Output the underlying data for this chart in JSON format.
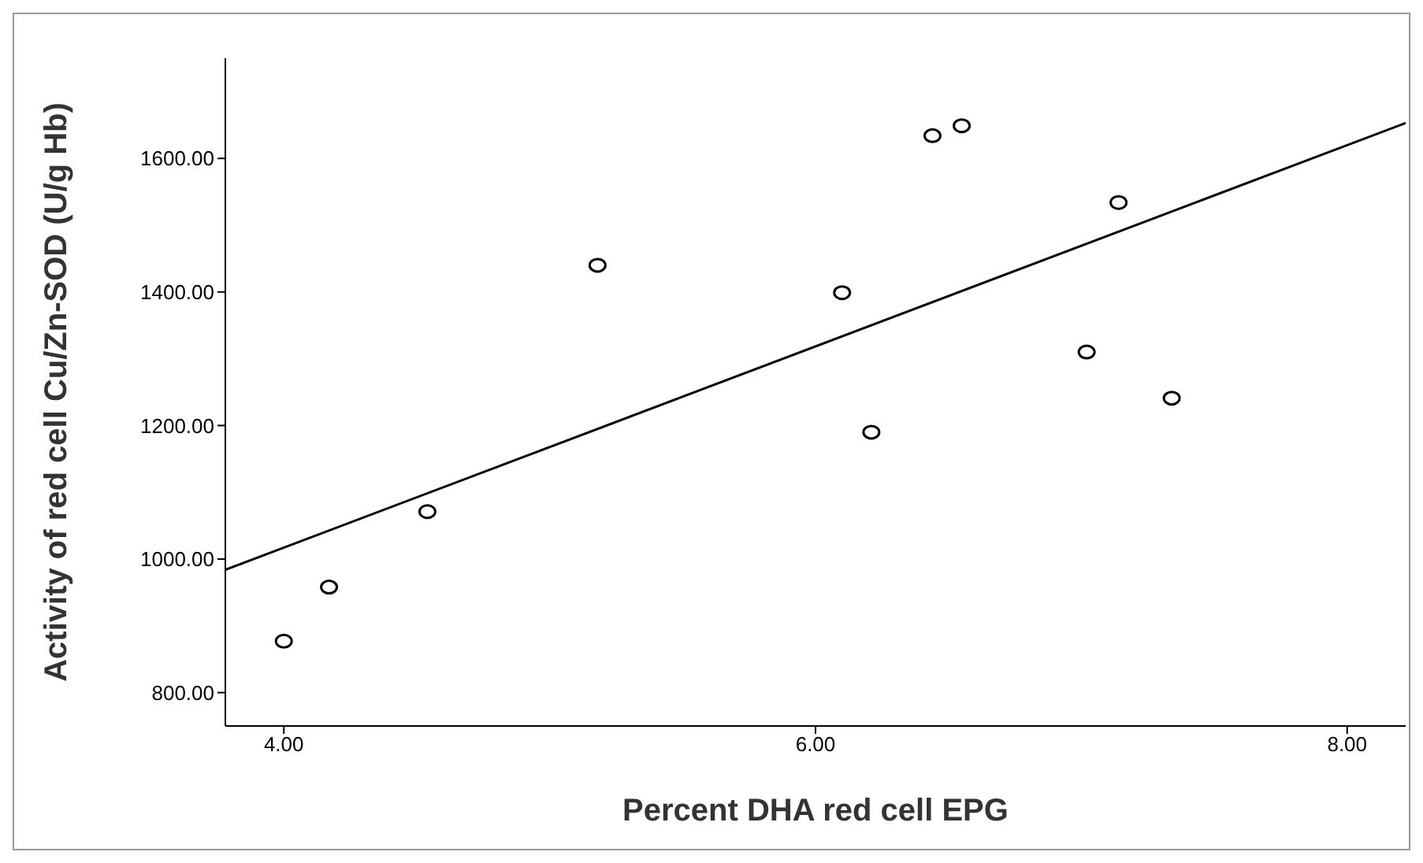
{
  "chart_data": {
    "type": "scatter",
    "xlabel": "Percent DHA red cell EPG",
    "ylabel": "Activity of red cell Cu/Zn-SOD (U/g Hb)",
    "xlim": [
      3.78,
      8.22
    ],
    "ylim": [
      750,
      1750
    ],
    "xticks": [
      {
        "value": 4,
        "label": "4.00"
      },
      {
        "value": 6,
        "label": "6.00"
      },
      {
        "value": 8,
        "label": "8.00"
      }
    ],
    "yticks": [
      {
        "value": 800,
        "label": "800.00"
      },
      {
        "value": 1000,
        "label": "1000.00"
      },
      {
        "value": 1200,
        "label": "1200.00"
      },
      {
        "value": 1400,
        "label": "1400.00"
      },
      {
        "value": 1600,
        "label": "1600.00"
      }
    ],
    "grid": false,
    "series": [
      {
        "color": "#000000",
        "marker": "circle",
        "x": [
          4.0,
          4.17,
          4.54,
          5.18,
          6.1,
          6.21,
          6.44,
          6.55,
          7.14,
          7.02,
          7.34
        ],
        "values": [
          877,
          958,
          1071,
          1440,
          1399,
          1190,
          1634,
          1649,
          1534,
          1310,
          1241
        ]
      },
      {
        "type": "line",
        "color": "#000000",
        "marker": "none",
        "x": [
          3.78,
          8.22
        ],
        "values": [
          984,
          1653
        ]
      }
    ]
  }
}
